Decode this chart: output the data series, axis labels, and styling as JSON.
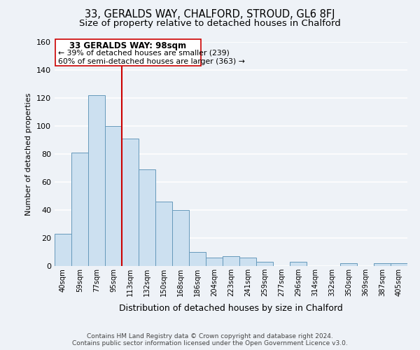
{
  "title": "33, GERALDS WAY, CHALFORD, STROUD, GL6 8FJ",
  "subtitle": "Size of property relative to detached houses in Chalford",
  "xlabel": "Distribution of detached houses by size in Chalford",
  "ylabel": "Number of detached properties",
  "bar_labels": [
    "40sqm",
    "59sqm",
    "77sqm",
    "95sqm",
    "113sqm",
    "132sqm",
    "150sqm",
    "168sqm",
    "186sqm",
    "204sqm",
    "223sqm",
    "241sqm",
    "259sqm",
    "277sqm",
    "296sqm",
    "314sqm",
    "332sqm",
    "350sqm",
    "369sqm",
    "387sqm",
    "405sqm"
  ],
  "bar_values": [
    23,
    81,
    122,
    100,
    91,
    69,
    46,
    40,
    10,
    6,
    7,
    6,
    3,
    0,
    3,
    0,
    0,
    2,
    0,
    2,
    2
  ],
  "bar_color": "#cce0f0",
  "bar_edge_color": "#6699bb",
  "vline_x_index": 3.5,
  "vline_color": "#cc0000",
  "annotation_title": "33 GERALDS WAY: 98sqm",
  "annotation_line1": "← 39% of detached houses are smaller (239)",
  "annotation_line2": "60% of semi-detached houses are larger (363) →",
  "annotation_box_color": "#ffffff",
  "annotation_box_edge": "#cc0000",
  "ylim": [
    0,
    160
  ],
  "yticks": [
    0,
    20,
    40,
    60,
    80,
    100,
    120,
    140,
    160
  ],
  "footer_line1": "Contains HM Land Registry data © Crown copyright and database right 2024.",
  "footer_line2": "Contains public sector information licensed under the Open Government Licence v3.0.",
  "background_color": "#eef2f7",
  "grid_color": "#ffffff",
  "title_fontsize": 10.5,
  "subtitle_fontsize": 9.5,
  "footer_fontsize": 6.5
}
